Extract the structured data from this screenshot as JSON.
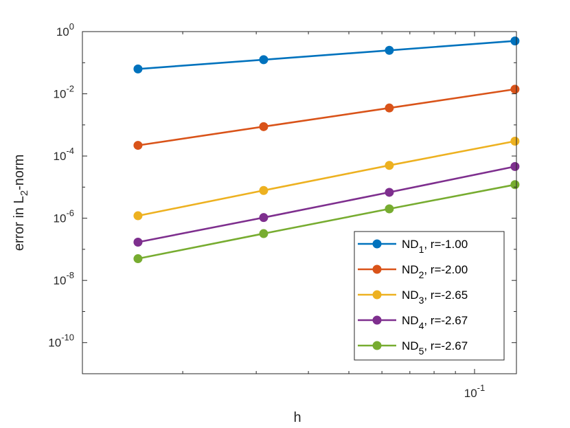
{
  "chart_data": {
    "type": "line",
    "xscale": "log",
    "yscale": "log",
    "xlabel": "h",
    "ylabel": "error in L2-norm",
    "ylabel_parts": {
      "prefix": "error in L",
      "sub": "2",
      "suffix": "-norm"
    },
    "xlim": [
      0.0115,
      0.126
    ],
    "ylim": [
      1e-11,
      1
    ],
    "x": [
      0.015625,
      0.03125,
      0.0625,
      0.125
    ],
    "yticks": [
      {
        "base": "10",
        "exp": "0",
        "value": 1
      },
      {
        "base": "10",
        "exp": "-2",
        "value": 0.01
      },
      {
        "base": "10",
        "exp": "-4",
        "value": 0.0001
      },
      {
        "base": "10",
        "exp": "-6",
        "value": 1e-06
      },
      {
        "base": "10",
        "exp": "-8",
        "value": 1e-08
      },
      {
        "base": "10",
        "exp": "-10",
        "value": 1e-10
      }
    ],
    "xticks": [
      {
        "base": "10",
        "exp": "-1",
        "value": 0.1
      }
    ],
    "legend_position": "bottom-right",
    "series": [
      {
        "name": "ND1, r=-1.00",
        "label_main": "ND",
        "label_sub": "1",
        "label_rest": ", r=-1.00",
        "color": "#0072BD",
        "values": [
          0.063,
          0.125,
          0.25,
          0.5
        ]
      },
      {
        "name": "ND2, r=-2.00",
        "label_main": "ND",
        "label_sub": "2",
        "label_rest": ", r=-2.00",
        "color": "#D95319",
        "values": [
          0.00022,
          0.00088,
          0.0035,
          0.014
        ]
      },
      {
        "name": "ND3, r=-2.65",
        "label_main": "ND",
        "label_sub": "3",
        "label_rest": ", r=-2.65",
        "color": "#EDB120",
        "values": [
          1.2e-06,
          7.8e-06,
          5e-05,
          0.0003
        ]
      },
      {
        "name": "ND4, r=-2.67",
        "label_main": "ND",
        "label_sub": "4",
        "label_rest": ", r=-2.67",
        "color": "#7E2F8E",
        "values": [
          1.7e-07,
          1.05e-06,
          6.8e-06,
          4.6e-05
        ]
      },
      {
        "name": "ND5, r=-2.67",
        "label_main": "ND",
        "label_sub": "5",
        "label_rest": ", r=-2.67",
        "color": "#77AC30",
        "values": [
          5e-08,
          3.2e-07,
          2e-06,
          1.2e-05
        ]
      }
    ]
  }
}
